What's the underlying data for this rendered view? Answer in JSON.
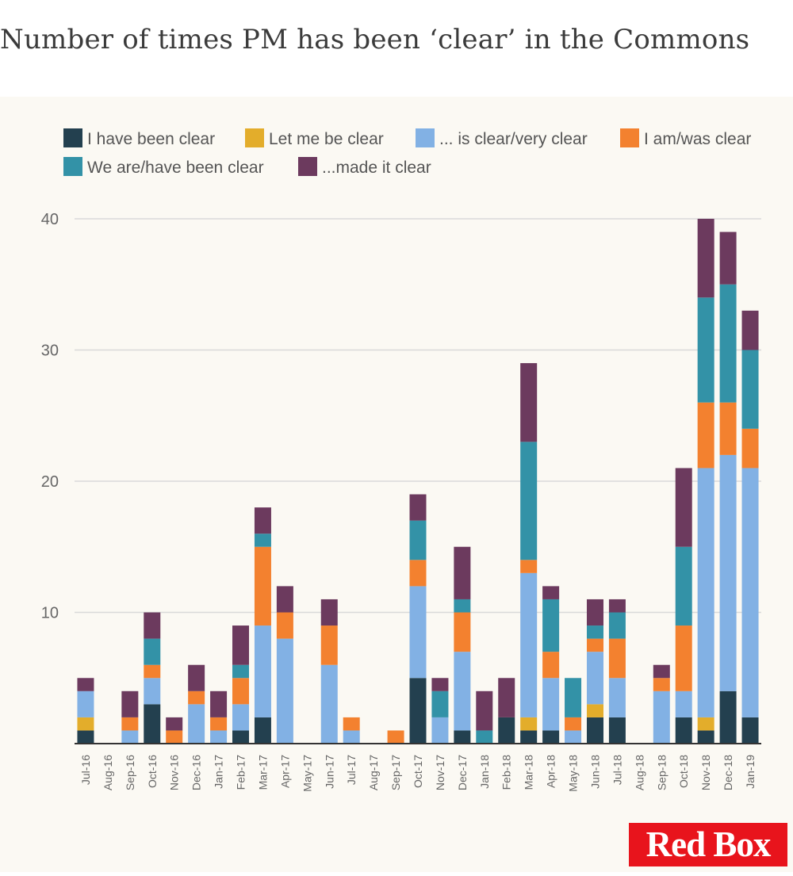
{
  "colors": {
    "I have been clear": "#23404f",
    "Let me be clear": "#e3ad2b",
    "... is clear/very clear": "#82b1e4",
    "I am/was clear": "#f3812f",
    "We are/have been clear": "#3392a7",
    "...made it clear": "#6c3a5e",
    "axis": "#333333",
    "grid": "#d9d9d9",
    "text": "#666666",
    "background": "#fbf9f3",
    "brand": "#e8141c"
  },
  "logo": {
    "text": "Red Box"
  },
  "chart_data": {
    "type": "bar",
    "stacked": true,
    "title": "Number of times PM has been ‘clear’ in the Commons",
    "xlabel": "",
    "ylabel": "",
    "ylim": [
      0,
      40
    ],
    "yticks": [
      10,
      20,
      30,
      40
    ],
    "grid": true,
    "legend_position": "top",
    "categories": [
      "Jul-16",
      "Aug-16",
      "Sep-16",
      "Oct-16",
      "Nov-16",
      "Dec-16",
      "Jan-17",
      "Feb-17",
      "Mar-17",
      "Apr-17",
      "May-17",
      "Jun-17",
      "Jul-17",
      "Aug-17",
      "Sep-17",
      "Oct-17",
      "Nov-17",
      "Dec-17",
      "Jan-18",
      "Feb-18",
      "Mar-18",
      "Apr-18",
      "May-18",
      "Jun-18",
      "Jul-18",
      "Aug-18",
      "Sep-18",
      "Oct-18",
      "Nov-18",
      "Dec-18",
      "Jan-19"
    ],
    "series": [
      {
        "name": "I have been clear",
        "values": [
          1,
          0,
          0,
          3,
          0,
          0,
          0,
          1,
          2,
          0,
          0,
          0,
          0,
          0,
          0,
          5,
          0,
          1,
          0,
          2,
          1,
          1,
          0,
          2,
          2,
          0,
          0,
          2,
          1,
          4,
          2
        ]
      },
      {
        "name": "Let me be clear",
        "values": [
          1,
          0,
          0,
          0,
          0,
          0,
          0,
          0,
          0,
          0,
          0,
          0,
          0,
          0,
          0,
          0,
          0,
          0,
          0,
          0,
          1,
          0,
          0,
          1,
          0,
          0,
          0,
          0,
          1,
          0,
          0
        ]
      },
      {
        "name": "... is clear/very clear",
        "values": [
          2,
          0,
          1,
          2,
          0,
          3,
          1,
          2,
          7,
          8,
          0,
          6,
          1,
          0,
          0,
          7,
          2,
          6,
          0,
          0,
          11,
          4,
          1,
          4,
          3,
          0,
          4,
          2,
          19,
          18,
          19
        ]
      },
      {
        "name": "I am/was clear",
        "values": [
          0,
          0,
          1,
          1,
          1,
          1,
          1,
          2,
          6,
          2,
          0,
          3,
          1,
          0,
          1,
          2,
          0,
          3,
          0,
          0,
          1,
          2,
          1,
          1,
          3,
          0,
          1,
          5,
          5,
          4,
          3
        ]
      },
      {
        "name": "We are/have been clear",
        "values": [
          0,
          0,
          0,
          2,
          0,
          0,
          0,
          1,
          1,
          0,
          0,
          0,
          0,
          0,
          0,
          3,
          2,
          1,
          1,
          0,
          9,
          4,
          3,
          1,
          2,
          0,
          0,
          6,
          8,
          9,
          6
        ]
      },
      {
        "name": "...made it clear",
        "values": [
          1,
          0,
          2,
          2,
          1,
          2,
          2,
          3,
          2,
          2,
          0,
          2,
          0,
          0,
          0,
          2,
          1,
          4,
          3,
          3,
          6,
          1,
          0,
          2,
          1,
          0,
          1,
          6,
          6,
          4,
          3
        ]
      }
    ]
  }
}
